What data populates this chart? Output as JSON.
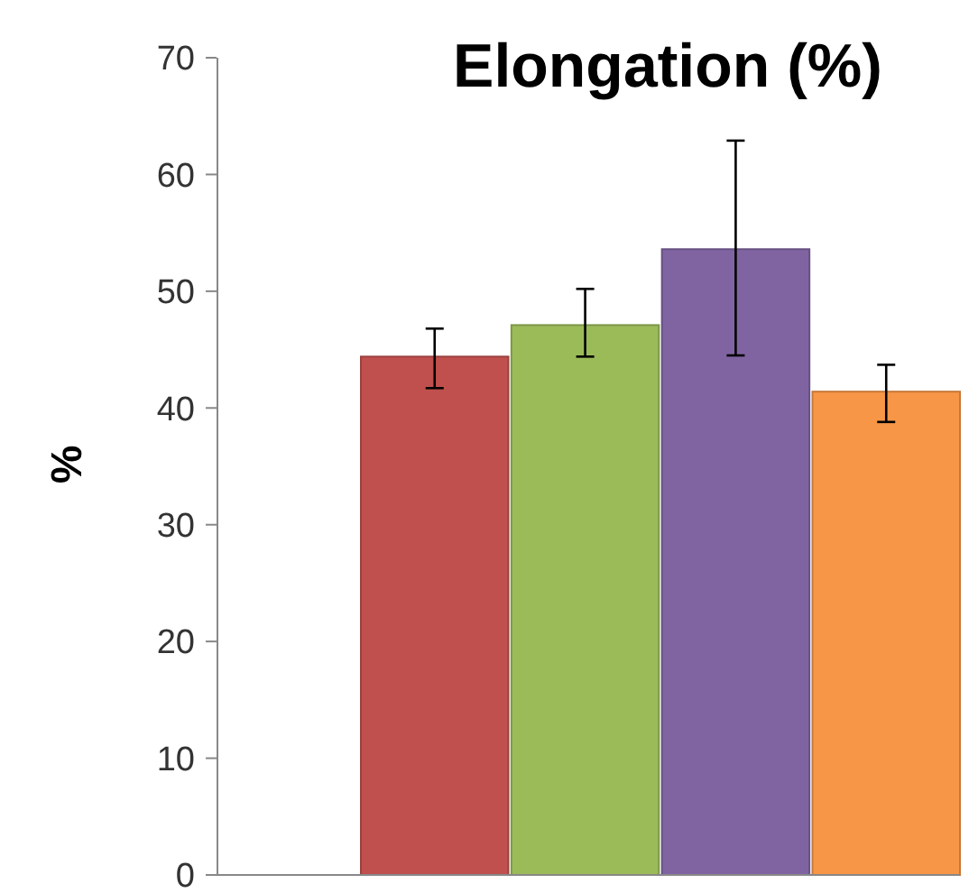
{
  "chart_data": {
    "type": "bar",
    "title": "Elongation  (%)",
    "ylabel": "%",
    "categories": [
      null,
      null,
      null,
      null
    ],
    "values": [
      44.4,
      47.1,
      53.6,
      41.4
    ],
    "colors": [
      "#c0504d",
      "#9bbb59",
      "#8064a2",
      "#f79646"
    ],
    "errors": [
      [
        41.7,
        46.8
      ],
      [
        44.4,
        50.2
      ],
      [
        44.5,
        62.9
      ],
      [
        38.8,
        43.7
      ]
    ],
    "ylim": [
      0,
      70
    ],
    "yticks": [
      0,
      10,
      20,
      30,
      40,
      50,
      60,
      70
    ],
    "grid": false
  }
}
